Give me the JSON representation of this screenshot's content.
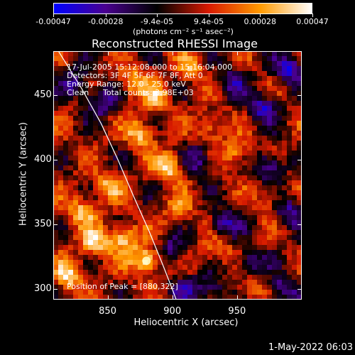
{
  "colorbar": {
    "ticks": [
      "-0.00047",
      "-0.00028",
      "-9.4e-05",
      "9.4e-05",
      "0.00028",
      "0.00047"
    ],
    "tick_values": [
      -0.00047,
      -0.00028,
      -9.4e-05,
      9.4e-05,
      0.00028,
      0.00047
    ],
    "unit": "(photons cm⁻² s⁻¹ asec⁻²)",
    "range": [
      -0.00047,
      0.00047
    ],
    "colors": [
      "#0000ff",
      "#4a0090",
      "#000000",
      "#d81a00",
      "#ff9a00",
      "#ffffff"
    ]
  },
  "chart_data": {
    "type": "heatmap",
    "title": "Reconstructed RHESSI Image",
    "xlabel": "Heliocentric X (arcsec)",
    "ylabel": "Heliocentric Y (arcsec)",
    "x_ticks": [
      "850",
      "900",
      "950"
    ],
    "y_ticks": [
      "300",
      "350",
      "400",
      "450"
    ],
    "xlim": [
      808,
      1000
    ],
    "ylim": [
      292,
      484
    ],
    "annotations": {
      "time": "17-Jul-2005 15:12:08.000 to 15:16:04.000",
      "detectors": "Detectors: 3F 4F 5F 6F 7F 8F, Att 0",
      "energy": "Energy Range: 12.0 - 25.0 keV",
      "algorithm": "Clean",
      "counts": "Total counts: 3.98E+03",
      "peak": "Position of Peak = [880,322]"
    },
    "peak_position": [
      880,
      322
    ],
    "limb_curve": [
      [
        812,
        484
      ],
      [
        830,
        455
      ],
      [
        845,
        428
      ],
      [
        858,
        400
      ],
      [
        870,
        372
      ],
      [
        882,
        345
      ],
      [
        893,
        318
      ],
      [
        900,
        300
      ],
      [
        903,
        292
      ]
    ],
    "hot_spots": [
      {
        "x": 880,
        "y": 322,
        "v": 1.0
      },
      {
        "x": 862,
        "y": 340,
        "v": 0.85
      },
      {
        "x": 898,
        "y": 395,
        "v": 0.9
      },
      {
        "x": 875,
        "y": 420,
        "v": 0.75
      },
      {
        "x": 840,
        "y": 335,
        "v": 0.8
      },
      {
        "x": 820,
        "y": 310,
        "v": 0.8
      },
      {
        "x": 830,
        "y": 360,
        "v": 0.7
      },
      {
        "x": 870,
        "y": 460,
        "v": 0.65
      },
      {
        "x": 888,
        "y": 448,
        "v": 0.6
      },
      {
        "x": 915,
        "y": 470,
        "v": 0.55
      },
      {
        "x": 930,
        "y": 425,
        "v": 0.55
      },
      {
        "x": 950,
        "y": 405,
        "v": 0.6
      },
      {
        "x": 905,
        "y": 360,
        "v": 0.55
      },
      {
        "x": 935,
        "y": 330,
        "v": 0.5
      },
      {
        "x": 960,
        "y": 300,
        "v": 0.45
      },
      {
        "x": 975,
        "y": 370,
        "v": 0.4
      },
      {
        "x": 850,
        "y": 380,
        "v": 0.65
      }
    ],
    "cold_spots": [
      {
        "x": 920,
        "y": 400,
        "v": -0.7
      },
      {
        "x": 940,
        "y": 350,
        "v": -0.75
      },
      {
        "x": 970,
        "y": 440,
        "v": -0.8
      },
      {
        "x": 990,
        "y": 470,
        "v": -0.9
      },
      {
        "x": 960,
        "y": 320,
        "v": -0.75
      },
      {
        "x": 985,
        "y": 300,
        "v": -0.7
      },
      {
        "x": 845,
        "y": 445,
        "v": -0.7
      },
      {
        "x": 825,
        "y": 460,
        "v": -0.6
      },
      {
        "x": 900,
        "y": 330,
        "v": -0.6
      },
      {
        "x": 975,
        "y": 395,
        "v": -0.8
      },
      {
        "x": 910,
        "y": 300,
        "v": -0.55
      },
      {
        "x": 945,
        "y": 460,
        "v": -0.6
      },
      {
        "x": 990,
        "y": 360,
        "v": -0.7
      },
      {
        "x": 930,
        "y": 300,
        "v": -0.6
      }
    ]
  },
  "footer": {
    "date": "1-May-2022 06:03"
  }
}
